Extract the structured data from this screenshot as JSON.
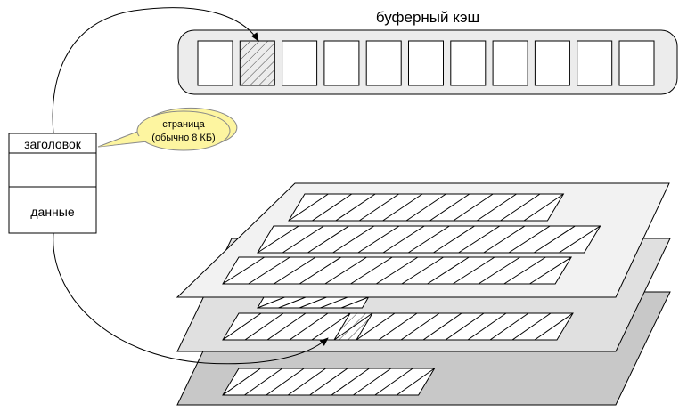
{
  "buffer_cache": {
    "title": "буферный кэш",
    "slot_count": 11,
    "highlighted_slot": 2
  },
  "page": {
    "header_label": "заголовок",
    "data_label": "данные"
  },
  "callout": {
    "line1": "страница",
    "line2": "(обычно 8 КБ)"
  },
  "disk_layers": [
    {
      "name": "top",
      "rows": [
        11,
        13,
        13
      ],
      "fill": "#f2f2f2"
    },
    {
      "name": "middle",
      "rows": [
        5,
        15
      ],
      "fill": "#e0e0e0",
      "highlighted_cell": 5
    },
    {
      "name": "bottom",
      "rows": [
        9
      ],
      "fill": "#c8c8c8"
    }
  ]
}
